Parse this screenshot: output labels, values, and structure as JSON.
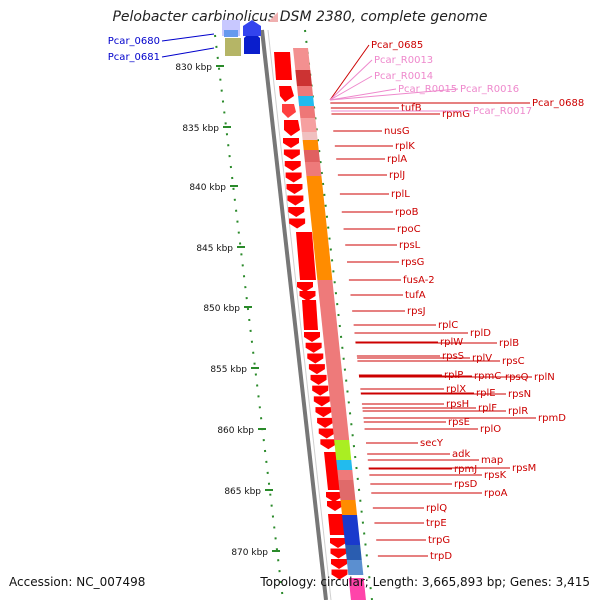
{
  "title": "Pelobacter carbinolicus DSM 2380, complete genome",
  "accession": "Accession: NC_007498",
  "topology": "Topology: circular; Length: 3,665,893 bp; Genes: 3,415",
  "ticks": [
    "830 kbp",
    "835 kbp",
    "840 kbp",
    "845 kbp",
    "850 kbp",
    "855 kbp",
    "860 kbp",
    "865 kbp",
    "870 kbp"
  ],
  "colors": {
    "reverse_strand_label": "#0000cc",
    "forward_strand_label": "#cc0000",
    "rna_label": "#ee88cc",
    "gene_red": "#ff0000",
    "cog_orange": "#ff8c00",
    "cog_salmon": "#ee7a7a",
    "cog_cyan": "#22bbee",
    "cog_blue": "#2a5db0",
    "cog_lime": "#aaee22",
    "tick_green": "#2a8a2a"
  },
  "genes": {
    "left": [
      "Pcar_0680",
      "Pcar_0681"
    ],
    "right": [
      "Pcar_0685",
      "Pcar_R0013",
      "Pcar_R0014",
      "Pcar_R0015",
      "Pcar_R0016",
      "tufB",
      "rpmG",
      "Pcar_R0017",
      "Pcar_0688",
      "nusG",
      "rplK",
      "rplA",
      "rplJ",
      "rplL",
      "rpoB",
      "rpoC",
      "rpsL",
      "rpsG",
      "fusA-2",
      "tufA",
      "rpsJ",
      "rplC",
      "rplD",
      "rplW",
      "rplB",
      "rpsS",
      "rplV",
      "rpsC",
      "rplP",
      "rpmC",
      "rpsQ",
      "rplN",
      "rplX",
      "rplE",
      "rpsN",
      "rpsH",
      "rplF",
      "rplR",
      "rpsE",
      "rpmD",
      "rplO",
      "secY",
      "adk",
      "map",
      "rpmJ",
      "rpsM",
      "rpsK",
      "rpsD",
      "rpoA",
      "rplQ",
      "trpE",
      "trpG",
      "trpD"
    ]
  }
}
